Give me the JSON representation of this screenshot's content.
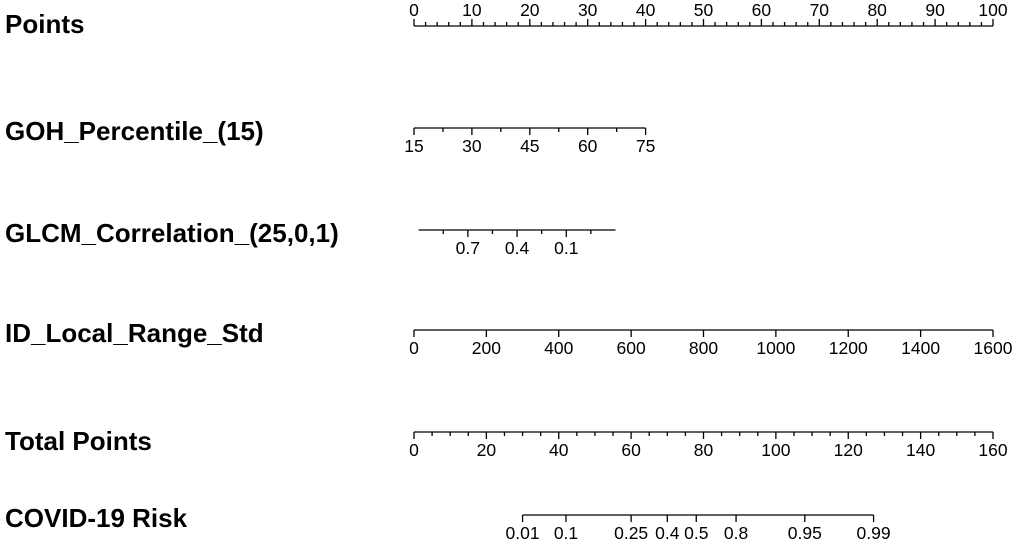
{
  "chart_data": {
    "type": "nomogram",
    "rows": [
      {
        "label": "Points",
        "labels_position": "above",
        "range": [
          0,
          100
        ],
        "major_ticks": [
          0,
          10,
          20,
          30,
          40,
          50,
          60,
          70,
          80,
          90,
          100
        ],
        "minor_ticks": [
          2,
          4,
          6,
          8,
          12,
          14,
          16,
          18,
          22,
          24,
          26,
          28,
          32,
          34,
          36,
          38,
          42,
          44,
          46,
          48,
          52,
          54,
          56,
          58,
          62,
          64,
          66,
          68,
          72,
          74,
          76,
          78,
          82,
          84,
          86,
          88,
          92,
          94,
          96,
          98
        ],
        "tick_labels": [
          "0",
          "10",
          "20",
          "30",
          "40",
          "50",
          "60",
          "70",
          "80",
          "90",
          "100"
        ]
      },
      {
        "label": "GOH_Percentile_(15)",
        "labels_position": "below",
        "range": [
          15,
          75
        ],
        "points_range": [
          0,
          40
        ],
        "major_ticks": [
          15,
          30,
          45,
          60,
          75
        ],
        "minor_ticks": [
          22.5,
          37.5,
          52.5,
          67.5
        ],
        "tick_labels": [
          "15",
          "30",
          "45",
          "60",
          "75"
        ]
      },
      {
        "label": "GLCM_Correlation_(25,0,1)",
        "labels_position": "below",
        "range": [
          1.0,
          -0.2
        ],
        "points_range": [
          0.8,
          34.8
        ],
        "major_ticks": [
          0.7,
          0.4,
          0.1
        ],
        "minor_ticks": [
          0.85,
          0.55,
          0.25,
          -0.05
        ],
        "tick_labels": [
          "0.7",
          "0.4",
          "0.1"
        ]
      },
      {
        "label": "ID_Local_Range_Std",
        "labels_position": "below",
        "range": [
          0,
          1600
        ],
        "points_range": [
          0,
          100
        ],
        "major_ticks": [
          0,
          200,
          400,
          600,
          800,
          1000,
          1200,
          1400,
          1600
        ],
        "minor_ticks": [],
        "tick_labels": [
          "0",
          "200",
          "400",
          "600",
          "800",
          "1000",
          "1200",
          "1400",
          "1600"
        ]
      },
      {
        "label": "Total Points",
        "labels_position": "below",
        "range": [
          0,
          160
        ],
        "major_ticks": [
          0,
          20,
          40,
          60,
          80,
          100,
          120,
          140,
          160
        ],
        "minor_ticks": [
          5,
          10,
          15,
          25,
          30,
          35,
          45,
          50,
          55,
          65,
          70,
          75,
          85,
          90,
          95,
          105,
          110,
          115,
          125,
          130,
          135,
          145,
          150,
          155
        ],
        "tick_labels": [
          "0",
          "20",
          "40",
          "60",
          "80",
          "100",
          "120",
          "140",
          "160"
        ]
      },
      {
        "label": "COVID-19 Risk",
        "labels_position": "below",
        "axis_total_points": [
          30,
          127
        ],
        "major_ticks_total_points": [
          30,
          42,
          60,
          70,
          78,
          89,
          108,
          127
        ],
        "tick_labels": [
          "0.01",
          "0.1",
          "0.25",
          "0.4",
          "0.5",
          "0.8",
          "0.95",
          "0.99"
        ]
      }
    ]
  }
}
